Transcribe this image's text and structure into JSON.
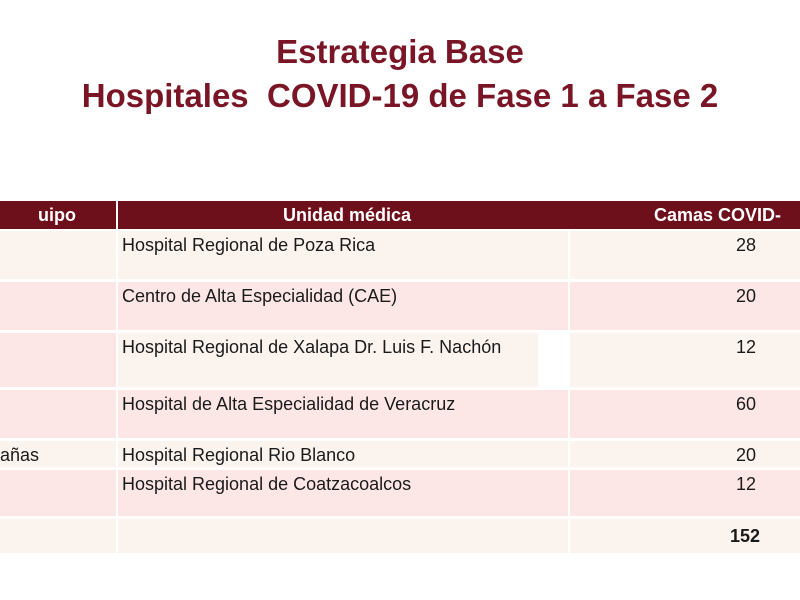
{
  "title": {
    "line1": "Estrategia Base",
    "line2": "Hospitales  COVID-19 de Fase 1 a Fase 2"
  },
  "table": {
    "headers": [
      "uipo",
      "Unidad médica",
      "Camas COVID-"
    ],
    "rows": [
      {
        "equipo": "",
        "unidad": "Hospital Regional de Poza Rica",
        "camas": "28"
      },
      {
        "equipo": "",
        "unidad": "Centro de Alta Especialidad (CAE)",
        "camas": "20"
      },
      {
        "equipo": "",
        "unidad": "Hospital Regional de Xalapa Dr. Luis F. Nachón",
        "camas": "12"
      },
      {
        "equipo": "",
        "unidad": "Hospital de Alta Especialidad de Veracruz",
        "camas": "60"
      },
      {
        "equipo": "añas",
        "unidad": "Hospital Regional Rio Blanco",
        "camas": "20"
      },
      {
        "equipo": "",
        "unidad": "Hospital Regional de Coatzacoalcos",
        "camas": "12"
      }
    ],
    "total": {
      "label": "",
      "unidad": "",
      "camas": "152"
    }
  }
}
